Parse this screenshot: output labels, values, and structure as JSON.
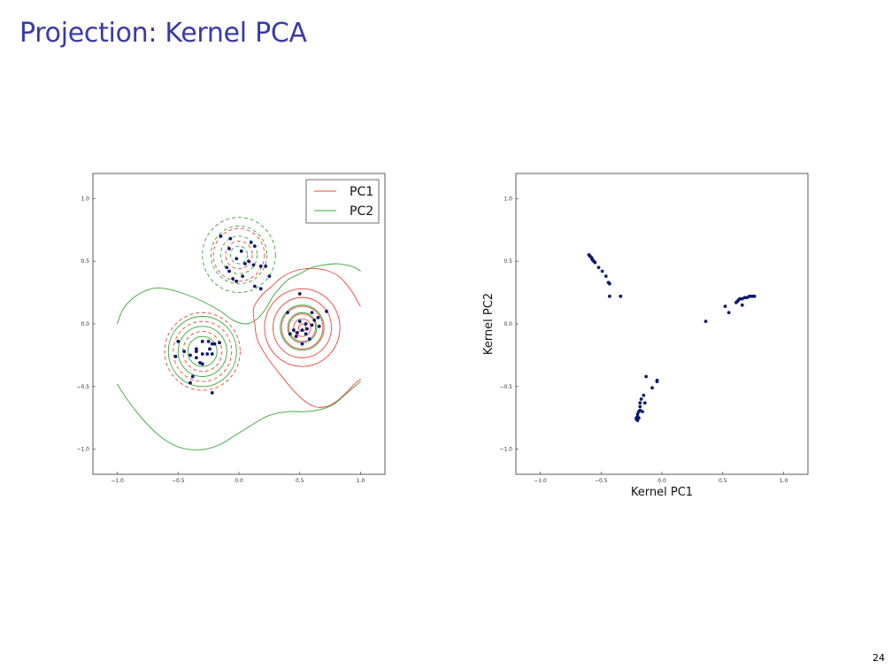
{
  "slide": {
    "title": "Projection: Kernel PCA",
    "page_number": "24"
  },
  "colors": {
    "title": "#3a3aa6",
    "pc1": "#e8483b",
    "pc2": "#3aa33a",
    "point": "#0b1a6e"
  },
  "chart_data": [
    {
      "type": "contour-scatter",
      "title": "",
      "xlabel": "",
      "ylabel": "",
      "xlim": [
        -1.2,
        1.2
      ],
      "ylim": [
        -1.2,
        1.2
      ],
      "xticks": [
        -1.0,
        -0.5,
        0.0,
        0.5,
        1.0
      ],
      "yticks": [
        -1.0,
        -0.5,
        0.0,
        0.5,
        1.0
      ],
      "tick_labels_x": [
        "−1.0",
        "−0.5",
        "0.0",
        "0.5",
        "1.0"
      ],
      "tick_labels_y": [
        "−1.0",
        "−0.5",
        "0.0",
        "0.5",
        "1.0"
      ],
      "legend": {
        "placement": "top-right",
        "entries": [
          "PC1",
          "PC2"
        ]
      },
      "clusters": [
        {
          "center": [
            0.0,
            0.55
          ],
          "points": [
            [
              -0.15,
              0.7
            ],
            [
              -0.07,
              0.68
            ],
            [
              0.02,
              0.58
            ],
            [
              -0.08,
              0.6
            ],
            [
              0.1,
              0.65
            ],
            [
              0.13,
              0.62
            ],
            [
              0.08,
              0.5
            ],
            [
              -0.02,
              0.52
            ],
            [
              0.05,
              0.48
            ],
            [
              0.12,
              0.47
            ],
            [
              0.18,
              0.46
            ],
            [
              -0.1,
              0.45
            ],
            [
              -0.08,
              0.42
            ],
            [
              0.03,
              0.38
            ],
            [
              -0.05,
              0.36
            ],
            [
              0.22,
              0.46
            ],
            [
              0.25,
              0.38
            ],
            [
              0.13,
              0.3
            ],
            [
              0.18,
              0.28
            ],
            [
              -0.02,
              0.34
            ]
          ]
        },
        {
          "center": [
            -0.3,
            -0.22
          ],
          "points": [
            [
              -0.5,
              -0.14
            ],
            [
              -0.45,
              -0.22
            ],
            [
              -0.52,
              -0.26
            ],
            [
              -0.35,
              -0.2
            ],
            [
              -0.3,
              -0.14
            ],
            [
              -0.25,
              -0.14
            ],
            [
              -0.22,
              -0.16
            ],
            [
              -0.2,
              -0.16
            ],
            [
              -0.24,
              -0.2
            ],
            [
              -0.22,
              -0.24
            ],
            [
              -0.3,
              -0.24
            ],
            [
              -0.26,
              -0.24
            ],
            [
              -0.35,
              -0.27
            ],
            [
              -0.4,
              -0.25
            ],
            [
              -0.3,
              -0.32
            ],
            [
              -0.32,
              -0.31
            ],
            [
              -0.38,
              -0.42
            ],
            [
              -0.4,
              -0.47
            ],
            [
              -0.22,
              -0.55
            ],
            [
              -0.16,
              -0.15
            ],
            [
              -0.35,
              -0.22
            ]
          ]
        },
        {
          "center": [
            0.52,
            -0.03
          ],
          "points": [
            [
              0.4,
              0.09
            ],
            [
              0.5,
              0.24
            ],
            [
              0.6,
              0.09
            ],
            [
              0.65,
              0.05
            ],
            [
              0.72,
              0.1
            ],
            [
              0.45,
              -0.05
            ],
            [
              0.48,
              -0.07
            ],
            [
              0.52,
              -0.05
            ],
            [
              0.56,
              -0.04
            ],
            [
              0.6,
              -0.01
            ],
            [
              0.62,
              0.03
            ],
            [
              0.66,
              -0.02
            ],
            [
              0.42,
              -0.08
            ],
            [
              0.5,
              0.02
            ],
            [
              0.55,
              0.0
            ],
            [
              0.47,
              -0.1
            ],
            [
              0.58,
              -0.12
            ],
            [
              0.52,
              -0.16
            ],
            [
              0.55,
              -0.08
            ]
          ]
        }
      ],
      "contours": {
        "pc1_circles": [
          {
            "center": [
              -0.3,
              -0.22
            ],
            "radii": [
              0.16,
              0.24,
              0.31
            ],
            "dashed": true
          },
          {
            "center": [
              0.0,
              0.55
            ],
            "radii": [
              0.11,
              0.21
            ],
            "dashed": true
          },
          {
            "center": [
              0.52,
              -0.03
            ],
            "radii": [
              0.03,
              0.07,
              0.11,
              0.17,
              0.24,
              0.31
            ],
            "dashed": false
          }
        ],
        "pc2_circles": [
          {
            "center": [
              -0.3,
              -0.22
            ],
            "radii": [
              0.12,
              0.2,
              0.28
            ],
            "dashed": false
          },
          {
            "center": [
              0.0,
              0.55
            ],
            "radii": [
              0.07,
              0.15,
              0.23,
              0.3
            ],
            "dashed": true
          },
          {
            "center": [
              0.52,
              -0.03
            ],
            "radii": [
              0.12,
              0.18
            ],
            "dashed": false
          }
        ],
        "pc1_curves": [
          [
            [
              0.13,
              0.0
            ],
            [
              0.12,
              0.12
            ],
            [
              0.18,
              0.22
            ],
            [
              0.27,
              0.3
            ],
            [
              0.35,
              0.37
            ],
            [
              0.45,
              0.42
            ],
            [
              0.55,
              0.44
            ],
            [
              0.65,
              0.44
            ],
            [
              0.74,
              0.42
            ],
            [
              0.82,
              0.38
            ],
            [
              0.88,
              0.32
            ],
            [
              0.94,
              0.24
            ],
            [
              0.98,
              0.17
            ],
            [
              1.0,
              0.14
            ]
          ],
          [
            [
              0.13,
              0.0
            ],
            [
              0.15,
              -0.12
            ],
            [
              0.22,
              -0.25
            ],
            [
              0.32,
              -0.38
            ],
            [
              0.42,
              -0.5
            ],
            [
              0.52,
              -0.6
            ],
            [
              0.62,
              -0.66
            ],
            [
              0.72,
              -0.66
            ],
            [
              0.8,
              -0.62
            ],
            [
              0.88,
              -0.55
            ],
            [
              0.95,
              -0.48
            ],
            [
              1.0,
              -0.44
            ]
          ]
        ],
        "pc2_curves": [
          [
            [
              -1.0,
              0.0
            ],
            [
              -0.95,
              0.12
            ],
            [
              -0.85,
              0.22
            ],
            [
              -0.72,
              0.28
            ],
            [
              -0.6,
              0.28
            ],
            [
              -0.45,
              0.24
            ],
            [
              -0.3,
              0.18
            ],
            [
              -0.15,
              0.1
            ],
            [
              -0.05,
              0.03
            ],
            [
              0.06,
              0.0
            ],
            [
              0.15,
              0.04
            ],
            [
              0.22,
              0.12
            ],
            [
              0.28,
              0.22
            ],
            [
              0.33,
              0.28
            ],
            [
              0.4,
              0.35
            ],
            [
              0.5,
              0.4
            ],
            [
              0.6,
              0.45
            ],
            [
              0.7,
              0.47
            ],
            [
              0.8,
              0.48
            ],
            [
              0.88,
              0.47
            ],
            [
              0.95,
              0.45
            ],
            [
              1.0,
              0.42
            ]
          ],
          [
            [
              -1.0,
              -0.48
            ],
            [
              -0.92,
              -0.6
            ],
            [
              -0.8,
              -0.75
            ],
            [
              -0.68,
              -0.87
            ],
            [
              -0.55,
              -0.96
            ],
            [
              -0.42,
              -1.0
            ],
            [
              -0.28,
              -1.0
            ],
            [
              -0.15,
              -0.96
            ],
            [
              -0.05,
              -0.9
            ],
            [
              0.05,
              -0.84
            ],
            [
              0.15,
              -0.78
            ],
            [
              0.25,
              -0.73
            ],
            [
              0.4,
              -0.7
            ],
            [
              0.55,
              -0.7
            ],
            [
              0.68,
              -0.68
            ],
            [
              0.78,
              -0.64
            ],
            [
              0.88,
              -0.56
            ],
            [
              0.95,
              -0.5
            ],
            [
              1.0,
              -0.46
            ]
          ]
        ]
      }
    },
    {
      "type": "scatter",
      "title": "",
      "xlabel": "Kernel PC1",
      "ylabel": "Kernel PC2",
      "xlim": [
        -1.2,
        1.2
      ],
      "ylim": [
        -1.2,
        1.2
      ],
      "xticks": [
        -1.0,
        -0.5,
        0.0,
        0.5,
        1.0
      ],
      "yticks": [
        -1.0,
        -0.5,
        0.0,
        0.5,
        1.0
      ],
      "tick_labels_x": [
        "−1.0",
        "−0.5",
        "0.0",
        "0.5",
        "1.0"
      ],
      "tick_labels_y": [
        "−1.0",
        "−0.5",
        "0.0",
        "0.5",
        "1.0"
      ],
      "points": [
        [
          -0.6,
          0.55
        ],
        [
          -0.59,
          0.54
        ],
        [
          -0.58,
          0.53
        ],
        [
          -0.575,
          0.52
        ],
        [
          -0.57,
          0.51
        ],
        [
          -0.56,
          0.5
        ],
        [
          -0.55,
          0.49
        ],
        [
          -0.52,
          0.45
        ],
        [
          -0.49,
          0.42
        ],
        [
          -0.46,
          0.38
        ],
        [
          -0.44,
          0.33
        ],
        [
          -0.43,
          0.32
        ],
        [
          -0.43,
          0.22
        ],
        [
          -0.34,
          0.22
        ],
        [
          0.36,
          0.02
        ],
        [
          0.52,
          0.14
        ],
        [
          0.55,
          0.09
        ],
        [
          0.61,
          0.17
        ],
        [
          0.62,
          0.18
        ],
        [
          0.63,
          0.19
        ],
        [
          0.64,
          0.2
        ],
        [
          0.66,
          0.2
        ],
        [
          0.68,
          0.21
        ],
        [
          0.7,
          0.21
        ],
        [
          0.72,
          0.22
        ],
        [
          0.74,
          0.22
        ],
        [
          0.76,
          0.22
        ],
        [
          0.66,
          0.15
        ],
        [
          -0.04,
          -0.45
        ],
        [
          -0.04,
          -0.46
        ],
        [
          -0.08,
          -0.51
        ],
        [
          -0.13,
          -0.42
        ],
        [
          -0.14,
          -0.63
        ],
        [
          -0.15,
          -0.57
        ],
        [
          -0.17,
          -0.6
        ],
        [
          -0.18,
          -0.63
        ],
        [
          -0.18,
          -0.66
        ],
        [
          -0.19,
          -0.7
        ],
        [
          -0.2,
          -0.72
        ],
        [
          -0.2,
          -0.74
        ],
        [
          -0.21,
          -0.75
        ],
        [
          -0.21,
          -0.76
        ],
        [
          -0.2,
          -0.77
        ],
        [
          -0.19,
          -0.75
        ],
        [
          -0.18,
          -0.69
        ],
        [
          -0.16,
          -0.7
        ]
      ]
    }
  ]
}
